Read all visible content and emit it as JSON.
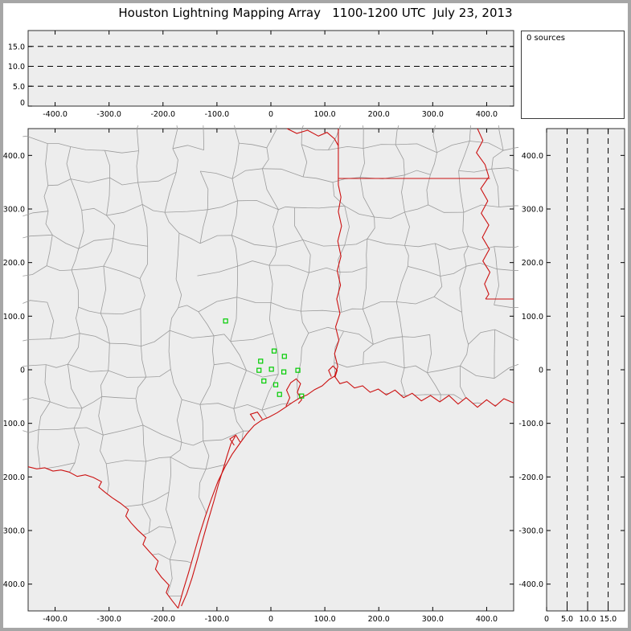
{
  "window": {
    "title": "Houston Lightning Mapping Array   1100-1200 UTC  July 23, 2013"
  },
  "sources_panel": {
    "label": "0 sources"
  },
  "colors": {
    "panel_bg": "#ededed",
    "frame": "#a6a6a6",
    "axis": "#000000",
    "county_line": "#9b9b9b",
    "state_line": "#cc1111",
    "station": "#00cc00"
  },
  "chart_data": [
    {
      "id": "alt_vs_ew",
      "type": "scatter",
      "title": "",
      "xlim": [
        -450,
        450
      ],
      "ylim": [
        0,
        19
      ],
      "xticks": [
        -400,
        -300,
        -200,
        -100,
        0,
        100,
        200,
        300,
        400
      ],
      "xtick_labels": [
        "-400.0",
        "-300.0",
        "-200.0",
        "-100.0",
        "0",
        "100.0",
        "200.0",
        "300.0",
        "400.0"
      ],
      "yticks": [
        15,
        10,
        5,
        0
      ],
      "ytick_labels": [
        "15.0",
        "10.0",
        "5.0",
        "0"
      ],
      "grid_y": [
        5,
        10,
        15
      ],
      "points": [],
      "source_count": 0
    },
    {
      "id": "plan_view_map",
      "type": "scatter",
      "title": "",
      "xlim": [
        -450,
        450
      ],
      "ylim": [
        -450,
        450
      ],
      "xticks": [
        -400,
        -300,
        -200,
        -100,
        0,
        100,
        200,
        300,
        400
      ],
      "xtick_labels": [
        "-400.0",
        "-300.0",
        "-200.0",
        "-100.0",
        "0",
        "100.0",
        "200.0",
        "300.0",
        "400.0"
      ],
      "yticks": [
        400,
        300,
        200,
        100,
        0,
        -100,
        -200,
        -300,
        -400
      ],
      "ytick_labels": [
        "400.0",
        "300.0",
        "200.0",
        "100.0",
        "0",
        "-100.0",
        "-200.0",
        "-300.0",
        "-400.0"
      ],
      "points": [],
      "source_count": 0,
      "stations": [
        [
          -84,
          91
        ],
        [
          6,
          35
        ],
        [
          25,
          25
        ],
        [
          -19,
          16
        ],
        [
          -22,
          -1
        ],
        [
          1,
          1
        ],
        [
          24,
          -4
        ],
        [
          -13,
          -21
        ],
        [
          9,
          -28
        ],
        [
          16,
          -46
        ],
        [
          50,
          -1
        ],
        [
          57,
          -49
        ]
      ],
      "boundaries": {
        "coastline": [
          [
            450,
            -62
          ],
          [
            432,
            -54
          ],
          [
            416,
            -68
          ],
          [
            400,
            -56
          ],
          [
            383,
            -70
          ],
          [
            362,
            -52
          ],
          [
            347,
            -64
          ],
          [
            330,
            -48
          ],
          [
            313,
            -60
          ],
          [
            296,
            -48
          ],
          [
            279,
            -58
          ],
          [
            262,
            -44
          ],
          [
            246,
            -52
          ],
          [
            230,
            -38
          ],
          [
            214,
            -47
          ],
          [
            199,
            -36
          ],
          [
            184,
            -42
          ],
          [
            170,
            -30
          ],
          [
            155,
            -34
          ],
          [
            141,
            -22
          ],
          [
            128,
            -26
          ],
          [
            118,
            -12
          ],
          [
            108,
            -18
          ],
          [
            95,
            -30
          ],
          [
            81,
            -37
          ],
          [
            67,
            -47
          ],
          [
            53,
            -53
          ],
          [
            40,
            -61
          ],
          [
            27,
            -70
          ],
          [
            12,
            -80
          ],
          [
            -3,
            -88
          ],
          [
            -17,
            -94
          ],
          [
            -31,
            -104
          ],
          [
            -45,
            -120
          ],
          [
            -58,
            -138
          ],
          [
            -72,
            -158
          ],
          [
            -85,
            -181
          ],
          [
            -98,
            -208
          ],
          [
            -110,
            -240
          ],
          [
            -122,
            -275
          ],
          [
            -133,
            -310
          ],
          [
            -143,
            -345
          ],
          [
            -153,
            -380
          ],
          [
            -163,
            -413
          ],
          [
            -172,
            -445
          ]
        ],
        "rio_grande": [
          [
            -172,
            -445
          ],
          [
            -183,
            -431
          ],
          [
            -194,
            -416
          ],
          [
            -189,
            -402
          ],
          [
            -203,
            -387
          ],
          [
            -214,
            -372
          ],
          [
            -209,
            -357
          ],
          [
            -224,
            -341
          ],
          [
            -237,
            -326
          ],
          [
            -232,
            -313
          ],
          [
            -247,
            -299
          ],
          [
            -259,
            -286
          ],
          [
            -269,
            -273
          ],
          [
            -264,
            -261
          ],
          [
            -279,
            -249
          ],
          [
            -294,
            -239
          ],
          [
            -307,
            -229
          ],
          [
            -319,
            -219
          ],
          [
            -314,
            -209
          ],
          [
            -329,
            -201
          ],
          [
            -344,
            -196
          ],
          [
            -359,
            -199
          ],
          [
            -374,
            -191
          ],
          [
            -389,
            -187
          ],
          [
            -404,
            -189
          ],
          [
            -419,
            -183
          ],
          [
            -434,
            -185
          ],
          [
            -450,
            -181
          ]
        ],
        "sabine_river": [
          [
            118,
            -12
          ],
          [
            124,
            6
          ],
          [
            118,
            30
          ],
          [
            126,
            55
          ],
          [
            120,
            80
          ],
          [
            128,
            105
          ],
          [
            122,
            132
          ],
          [
            129,
            158
          ],
          [
            123,
            185
          ],
          [
            130,
            212
          ],
          [
            124,
            240
          ],
          [
            131,
            268
          ],
          [
            125,
            295
          ],
          [
            130,
            322
          ],
          [
            125,
            345
          ],
          [
            125,
            357
          ]
        ],
        "tx_ar_ok_border": [
          [
            125,
            357
          ],
          [
            125,
            450
          ]
        ],
        "la_ar_border": [
          [
            125,
            357
          ],
          [
            406,
            357
          ]
        ],
        "mississippi_river": [
          [
            383,
            450
          ],
          [
            393,
            428
          ],
          [
            381,
            405
          ],
          [
            397,
            383
          ],
          [
            404,
            360
          ],
          [
            389,
            338
          ],
          [
            402,
            315
          ],
          [
            390,
            292
          ],
          [
            404,
            270
          ],
          [
            392,
            247
          ],
          [
            405,
            225
          ],
          [
            393,
            203
          ],
          [
            406,
            182
          ],
          [
            396,
            160
          ],
          [
            404,
            141
          ],
          [
            398,
            132
          ]
        ],
        "la_ms_border": [
          [
            398,
            132
          ],
          [
            450,
            132
          ]
        ],
        "red_river": [
          [
            30,
            450
          ],
          [
            48,
            441
          ],
          [
            68,
            447
          ],
          [
            88,
            436
          ],
          [
            104,
            443
          ],
          [
            118,
            431
          ],
          [
            125,
            418
          ]
        ],
        "barrier_islands": [
          [
            -166,
            -441
          ],
          [
            -156,
            -418
          ],
          [
            -146,
            -388
          ],
          [
            -136,
            -353
          ],
          [
            -126,
            -316
          ],
          [
            -116,
            -280
          ],
          [
            -106,
            -246
          ],
          [
            -97,
            -213
          ],
          [
            -88,
            -184
          ],
          [
            -81,
            -160
          ],
          [
            -74,
            -138
          ],
          [
            -66,
            -124
          ]
        ],
        "galveston_bay": [
          [
            28,
            -68
          ],
          [
            35,
            -52
          ],
          [
            29,
            -38
          ],
          [
            37,
            -24
          ],
          [
            47,
            -17
          ],
          [
            55,
            -26
          ],
          [
            49,
            -42
          ],
          [
            57,
            -56
          ],
          [
            51,
            -63
          ]
        ],
        "matagorda_bay": [
          [
            -16,
            -92
          ],
          [
            -25,
            -79
          ],
          [
            -38,
            -83
          ],
          [
            -30,
            -95
          ]
        ],
        "san_antonio_bay": [
          [
            -57,
            -135
          ],
          [
            -65,
            -122
          ],
          [
            -76,
            -129
          ],
          [
            -68,
            -141
          ]
        ],
        "sabine_lake": [
          [
            112,
            -13
          ],
          [
            107,
            -1
          ],
          [
            115,
            7
          ],
          [
            123,
            -1
          ],
          [
            119,
            -13
          ]
        ]
      }
    },
    {
      "id": "alt_vs_ns",
      "type": "scatter",
      "title": "",
      "xlim": [
        0,
        19
      ],
      "ylim": [
        -450,
        450
      ],
      "xticks": [
        0,
        5,
        10,
        15
      ],
      "xtick_labels": [
        "0",
        "5.0",
        "10.0",
        "15.0"
      ],
      "yticks": [
        400,
        300,
        200,
        100,
        0,
        -100,
        -200,
        -300,
        -400
      ],
      "ytick_labels": [
        "400.0",
        "300.0",
        "200.0",
        "100.0",
        "0",
        "-100.0",
        "-200.0",
        "-300.0",
        "-400.0"
      ],
      "grid_x": [
        5,
        10,
        15
      ],
      "points": [],
      "source_count": 0
    }
  ]
}
